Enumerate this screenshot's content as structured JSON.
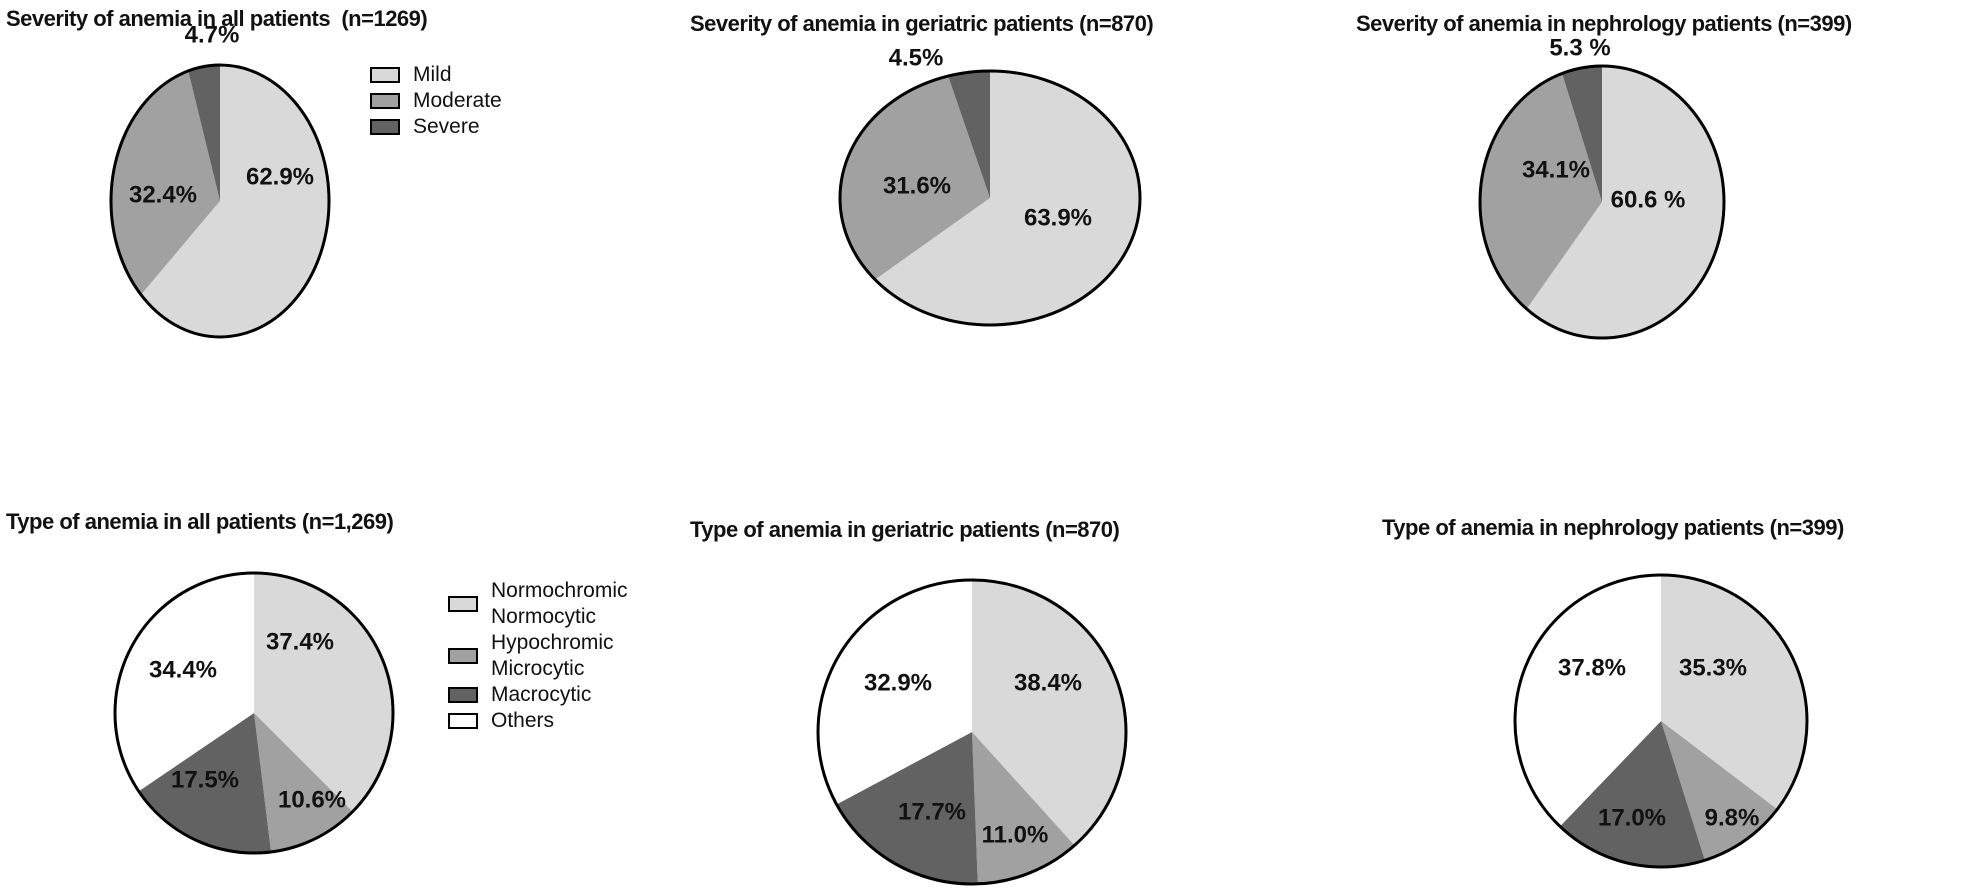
{
  "figure": {
    "background": "#ffffff",
    "colors": {
      "light_gray": "#d9d9d9",
      "medium_gray": "#a1a1a1",
      "dark_gray": "#626262",
      "white": "#ffffff",
      "outline": "#000000"
    }
  },
  "legends": {
    "severity": [
      {
        "label_lines": [
          "Mild"
        ],
        "color_key": "light_gray"
      },
      {
        "label_lines": [
          "Moderate"
        ],
        "color_key": "medium_gray"
      },
      {
        "label_lines": [
          "Severe"
        ],
        "color_key": "dark_gray"
      }
    ],
    "type": [
      {
        "label_lines": [
          "Normochromic",
          "Normocytic"
        ],
        "color_key": "light_gray"
      },
      {
        "label_lines": [
          "Hypochromic",
          "Microcytic"
        ],
        "color_key": "medium_gray"
      },
      {
        "label_lines": [
          "Macrocytic"
        ],
        "color_key": "dark_gray"
      },
      {
        "label_lines": [
          "Others"
        ],
        "color_key": "white"
      }
    ]
  },
  "chart_data": [
    {
      "id": "severity-all",
      "type": "pie",
      "title": "Severity of anemia in all patients  (n=1269)",
      "categories": [
        "Mild",
        "Moderate",
        "Severe"
      ],
      "values": [
        62.9,
        32.4,
        4.7
      ],
      "value_labels": [
        "62.9%",
        "32.4%",
        "4.7%"
      ],
      "colors": [
        "light_gray",
        "medium_gray",
        "dark_gray"
      ],
      "start_angle_deg": 0,
      "direction": "clockwise",
      "legend": "severity",
      "legend_position": "right"
    },
    {
      "id": "severity-geriatric",
      "type": "pie",
      "title": "Severity of anemia in geriatric patients (n=870)",
      "categories": [
        "Mild",
        "Moderate",
        "Severe"
      ],
      "values": [
        63.9,
        31.6,
        4.5
      ],
      "value_labels": [
        "63.9%",
        "31.6%",
        "4.5%"
      ],
      "colors": [
        "light_gray",
        "medium_gray",
        "dark_gray"
      ],
      "start_angle_deg": 0,
      "direction": "clockwise",
      "legend": null,
      "legend_position": null
    },
    {
      "id": "severity-nephrology",
      "type": "pie",
      "title": "Severity of anemia in nephrology patients (n=399)",
      "categories": [
        "Mild",
        "Moderate",
        "Severe"
      ],
      "values": [
        60.6,
        34.1,
        5.3
      ],
      "value_labels": [
        "60.6 %",
        "34.1%",
        "5.3 %"
      ],
      "colors": [
        "light_gray",
        "medium_gray",
        "dark_gray"
      ],
      "start_angle_deg": 0,
      "direction": "clockwise",
      "legend": null,
      "legend_position": null
    },
    {
      "id": "type-all",
      "type": "pie",
      "title": "Type of anemia in all patients (n=1,269)",
      "categories": [
        "Normochromic Normocytic",
        "Hypochromic Microcytic",
        "Macrocytic",
        "Others"
      ],
      "values": [
        37.4,
        10.6,
        17.5,
        34.4
      ],
      "value_labels": [
        "37.4%",
        "10.6%",
        "17.5%",
        "34.4%"
      ],
      "colors": [
        "light_gray",
        "medium_gray",
        "dark_gray",
        "white"
      ],
      "start_angle_deg": 0,
      "direction": "clockwise",
      "legend": "type",
      "legend_position": "right"
    },
    {
      "id": "type-geriatric",
      "type": "pie",
      "title": "Type of anemia in geriatric patients (n=870)",
      "categories": [
        "Normochromic Normocytic",
        "Hypochromic Microcytic",
        "Macrocytic",
        "Others"
      ],
      "values": [
        38.4,
        11.0,
        17.7,
        32.9
      ],
      "value_labels": [
        "38.4%",
        "11.0%",
        "17.7%",
        "32.9%"
      ],
      "colors": [
        "light_gray",
        "medium_gray",
        "dark_gray",
        "white"
      ],
      "start_angle_deg": 0,
      "direction": "clockwise",
      "legend": null,
      "legend_position": null
    },
    {
      "id": "type-nephrology",
      "type": "pie",
      "title": "Type of anemia in nephrology patients (n=399)",
      "categories": [
        "Normochromic Normocytic",
        "Hypochromic Microcytic",
        "Macrocytic",
        "Others"
      ],
      "values": [
        35.3,
        9.8,
        17.0,
        37.8
      ],
      "value_labels": [
        "35.3%",
        "9.8%",
        "17.0%",
        "37.8%"
      ],
      "colors": [
        "light_gray",
        "medium_gray",
        "dark_gray",
        "white"
      ],
      "start_angle_deg": 0,
      "direction": "clockwise",
      "legend": null,
      "legend_position": null
    }
  ]
}
